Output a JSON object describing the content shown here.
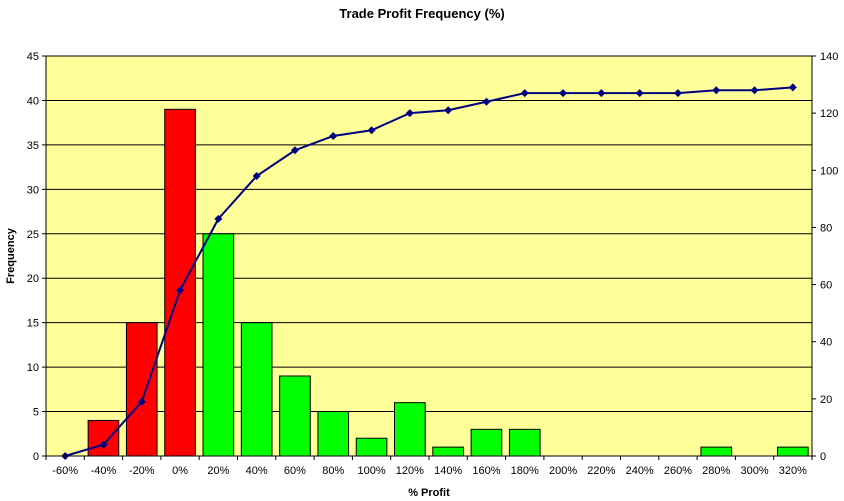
{
  "chart_data": {
    "type": "bar",
    "title": "Trade Profit Frequency (%)",
    "xlabel": "% Profit",
    "ylabel": "Frequency",
    "y2label": "",
    "categories": [
      "-60%",
      "-40%",
      "-20%",
      "0%",
      "20%",
      "40%",
      "60%",
      "80%",
      "100%",
      "120%",
      "140%",
      "160%",
      "180%",
      "200%",
      "220%",
      "240%",
      "260%",
      "280%",
      "300%",
      "320%"
    ],
    "ylim": [
      0,
      45
    ],
    "yticks": [
      0,
      5,
      10,
      15,
      20,
      25,
      30,
      35,
      40,
      45
    ],
    "y2lim": [
      0,
      140
    ],
    "y2ticks": [
      0,
      20,
      40,
      60,
      80,
      100,
      120,
      140
    ],
    "grid": true,
    "series": [
      {
        "type": "bar",
        "axis": "left",
        "values": [
          0,
          4,
          15,
          39,
          25,
          15,
          9,
          5,
          2,
          6,
          1,
          3,
          3,
          0,
          0,
          0,
          0,
          1,
          0,
          1
        ]
      },
      {
        "type": "line",
        "axis": "right",
        "values": [
          0,
          4,
          19,
          58,
          83,
          98,
          107,
          112,
          114,
          120,
          121,
          124,
          127,
          127,
          127,
          127,
          127,
          128,
          128,
          129
        ]
      }
    ],
    "colors": {
      "loss_bar": "#ff0000",
      "profit_bar": "#00ff00",
      "line": "#000080",
      "plot_background": "#ffff99"
    }
  }
}
